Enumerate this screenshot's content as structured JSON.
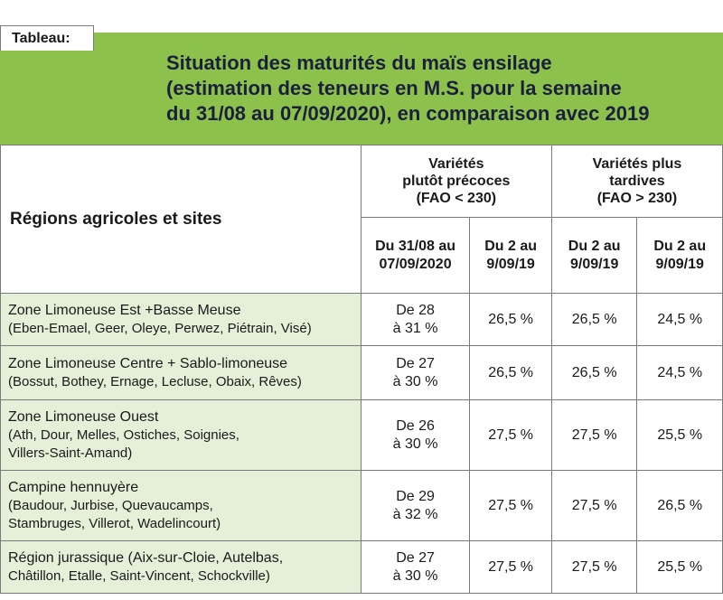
{
  "tab_label": "Tableau:",
  "title": [
    "Situation des maturités du maïs ensilage",
    "(estimation des teneurs en M.S. pour la semaine",
    "du 31/08 au 07/09/2020), en comparaison avec 2019"
  ],
  "header": {
    "regions": "Régions agricoles et sites",
    "group1": [
      "Variétés",
      "plutôt précoces",
      "(FAO < 230)"
    ],
    "group2": [
      "Variétés plus",
      "tardives",
      "(FAO > 230)"
    ],
    "col1": [
      "Du 31/08 au",
      "07/09/2020"
    ],
    "col2": [
      "Du 2 au",
      "9/09/19"
    ],
    "col3": [
      "Du 2 au",
      "9/09/19"
    ],
    "col4": [
      "Du 2 au",
      "9/09/19"
    ]
  },
  "rows": [
    {
      "name": "Zone Limoneuse Est +Basse Meuse",
      "sites": [
        "(Eben-Emael, Geer, Oleye, Perwez, Piétrain, Visé)"
      ],
      "range": [
        "De 28",
        "à 31 %"
      ],
      "v2": "26,5 %",
      "v3": "26,5 %",
      "v4": "24,5 %"
    },
    {
      "name": "Zone Limoneuse Centre + Sablo-limoneuse",
      "sites": [
        "(Bossut, Bothey, Ernage, Lecluse, Obaix, Rêves)"
      ],
      "range": [
        "De 27",
        "à 30 %"
      ],
      "v2": "26,5 %",
      "v3": "26,5 %",
      "v4": "24,5 %"
    },
    {
      "name": "Zone Limoneuse Ouest",
      "sites": [
        "(Ath, Dour, Melles, Ostiches, Soignies,",
        "Villers-Saint-Amand)"
      ],
      "range": [
        "De 26",
        "à 30 %"
      ],
      "v2": "27,5 %",
      "v3": "27,5 %",
      "v4": "25,5 %"
    },
    {
      "name": "Campine hennuyère",
      "sites": [
        "(Baudour, Jurbise, Quevaucamps,",
        "Stambruges, Villerot, Wadelincourt)"
      ],
      "range": [
        "De 29",
        "à 32 %"
      ],
      "v2": "27,5 %",
      "v3": "27,5 %",
      "v4": "26,5 %"
    },
    {
      "name": "Région jurassique (Aix-sur-Cloie, Autelbas,",
      "sites": [
        "Châtillon, Etalle, Saint-Vincent, Schockville)"
      ],
      "range": [
        "De 27",
        "à 30 %"
      ],
      "v2": "27,5 %",
      "v3": "27,5 %",
      "v4": "25,5 %"
    }
  ],
  "colors": {
    "title_band": "#8cc24c",
    "region_bg": "#e6f0d8",
    "title_text": "#1b1f3d"
  }
}
